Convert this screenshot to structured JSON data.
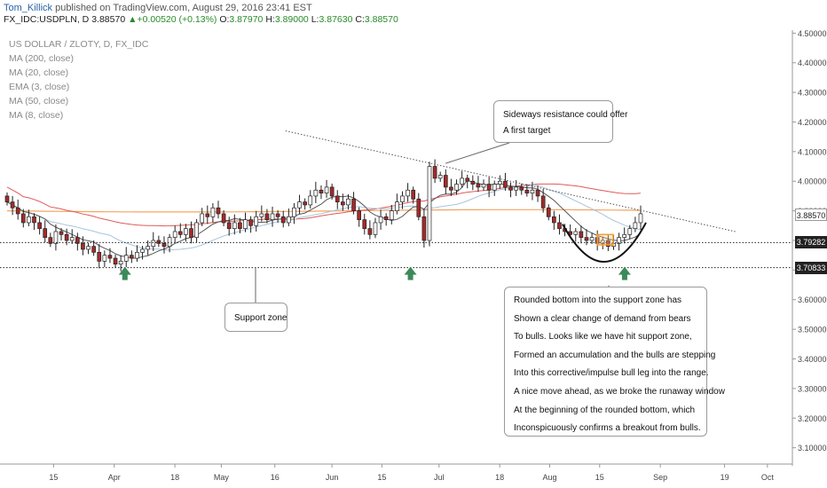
{
  "header": {
    "author": "Tom_Killick",
    "published_text": "published on TradingView.com, August 29, 2016 23:41 EST",
    "symbol": "FX_IDC:USDPLN, D",
    "last": "3.88570",
    "change": "+0.00520 (+0.13%)",
    "o_label": "O:",
    "o": "3.87970",
    "h_label": "H:",
    "h": "3.89000",
    "l_label": "L:",
    "l": "3.87630",
    "c_label": "C:",
    "c": "3.88570"
  },
  "indicators": [
    "US DOLLAR / ZLOTY, D, FX_IDC",
    "MA (200, close)",
    "MA (20, close)",
    "EMA (3, close)",
    "MA (50, close)",
    "MA (8, close)"
  ],
  "annotations": {
    "resistance": [
      "Sideways resistance could offer",
      "A first target"
    ],
    "support": "Support zone",
    "analysis": [
      "Rounded bottom into the support zone has",
      "Shown a clear change of demand from bears",
      "To bulls. Looks like we have hit support zone,",
      "Formed an accumulation and the bulls are stepping",
      "Into this corrective/impulse bull leg into the range.",
      "A nice move ahead, as we broke the runaway window",
      "At the beginning of the rounded bottom, which",
      "Inconspicuously confirms a breakout from bulls."
    ]
  },
  "price_labels": [
    {
      "value": "3.88570",
      "price": 3.8857,
      "color": "#ffffff",
      "text_color": "#222222"
    },
    {
      "value": "3.79282",
      "price": 3.79282,
      "color": "#222222",
      "text_color": "#ffffff"
    },
    {
      "value": "3.70833",
      "price": 3.70833,
      "color": "#222222",
      "text_color": "#ffffff"
    }
  ],
  "chart_data": {
    "type": "candlestick",
    "y_ticks": [
      "4.50000",
      "4.40000",
      "4.30000",
      "4.20000",
      "4.10000",
      "4.00000",
      "3.90000",
      "3.80000",
      "3.70000",
      "3.60000",
      "3.50000",
      "3.40000",
      "3.30000",
      "3.20000",
      "3.10000"
    ],
    "y_tick_values": [
      4.5,
      4.4,
      4.3,
      4.2,
      4.1,
      4.0,
      3.9,
      3.8,
      3.7,
      3.6,
      3.5,
      3.4,
      3.3,
      3.2,
      3.1
    ],
    "ylim": [
      3.045,
      4.51
    ],
    "x_ticks": [
      "15",
      "Apr",
      "18",
      "May",
      "16",
      "Jun",
      "15",
      "Jul",
      "18",
      "Aug",
      "15",
      "Sep",
      "19",
      "Oct"
    ],
    "x_tick_dates": [
      "2016-03-15",
      "2016-04-01",
      "2016-04-18",
      "2016-05-01",
      "2016-05-16",
      "2016-06-01",
      "2016-06-15",
      "2016-07-01",
      "2016-07-18",
      "2016-08-01",
      "2016-08-15",
      "2016-09-01",
      "2016-09-19",
      "2016-10-01"
    ],
    "xlim": [
      "2016-02-29",
      "2016-10-08"
    ],
    "support_levels": [
      3.79282,
      3.70833
    ],
    "resistance_line": {
      "from": [
        "2016-05-19",
        4.17
      ],
      "to": [
        "2016-09-22",
        3.83
      ]
    },
    "arrows": [
      "2016-04-04",
      "2016-06-23",
      "2016-08-22"
    ],
    "closes": [
      3.93,
      3.91,
      3.89,
      3.86,
      3.88,
      3.86,
      3.84,
      3.81,
      3.79,
      3.83,
      3.82,
      3.8,
      3.81,
      3.79,
      3.77,
      3.78,
      3.76,
      3.73,
      3.75,
      3.74,
      3.72,
      3.73,
      3.75,
      3.74,
      3.76,
      3.77,
      3.78,
      3.8,
      3.79,
      3.78,
      3.81,
      3.83,
      3.82,
      3.84,
      3.81,
      3.86,
      3.89,
      3.88,
      3.91,
      3.89,
      3.86,
      3.84,
      3.86,
      3.84,
      3.87,
      3.85,
      3.88,
      3.89,
      3.87,
      3.89,
      3.88,
      3.86,
      3.88,
      3.91,
      3.93,
      3.92,
      3.95,
      3.97,
      3.96,
      3.98,
      3.95,
      3.93,
      3.92,
      3.94,
      3.9,
      3.87,
      3.84,
      3.82,
      3.86,
      3.88,
      3.87,
      3.9,
      3.93,
      3.95,
      3.97,
      3.94,
      3.88,
      3.8,
      4.05,
      4.01,
      4.02,
      3.98,
      3.97,
      3.99,
      4.01,
      4.0,
      3.99,
      3.98,
      3.99,
      3.97,
      3.99,
      4.0,
      3.98,
      3.97,
      3.98,
      3.97,
      3.96,
      3.97,
      3.95,
      3.91,
      3.88,
      3.86,
      3.84,
      3.83,
      3.82,
      3.83,
      3.81,
      3.8,
      3.81,
      3.79,
      3.8,
      3.78,
      3.79,
      3.81,
      3.82,
      3.84,
      3.86,
      3.89
    ]
  }
}
